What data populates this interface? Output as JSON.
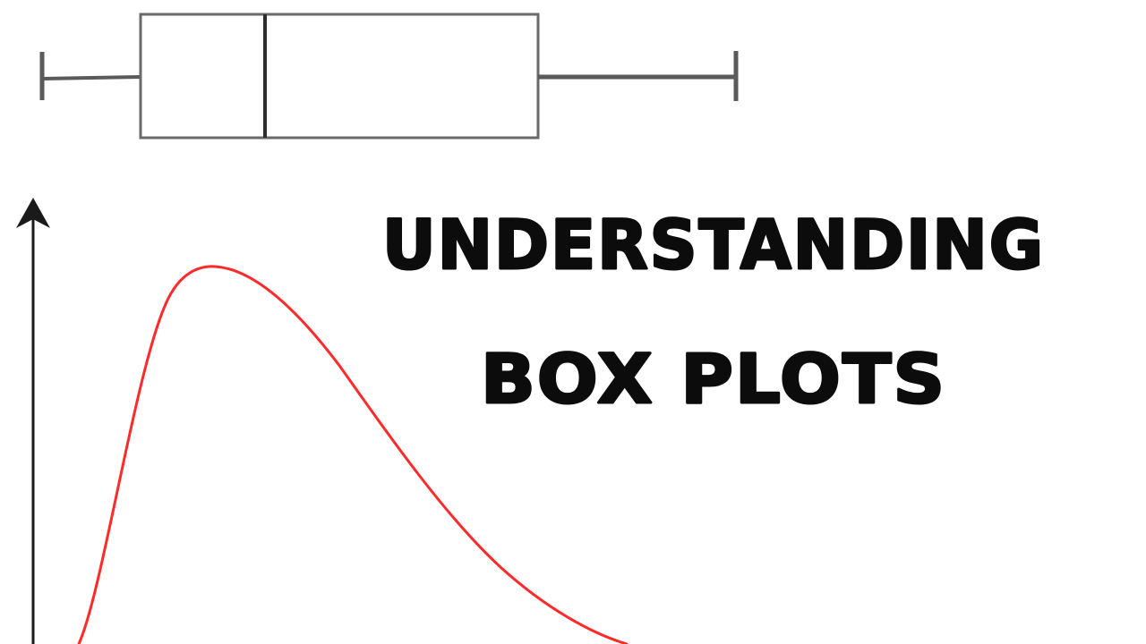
{
  "title": {
    "line1": "UNDERSTANDING",
    "line2": "BOX PLOTS"
  },
  "colors": {
    "box_plot_stroke": "#5a5a5a",
    "median_stroke": "#2e2e2e",
    "axis_stroke": "#1a1a1a",
    "curve_stroke": "#ff2a2a",
    "title_text": "#0c0c0c",
    "background": "#ffffff"
  }
}
